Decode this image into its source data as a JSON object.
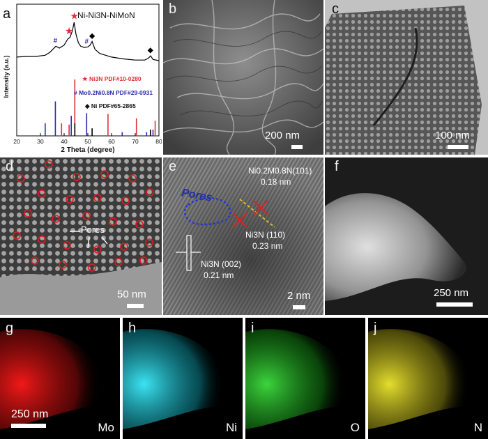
{
  "panels": {
    "a": {
      "label": "a",
      "title": "Ni-Ni3N-NiMoN",
      "ylabel": "Intensity (a.u.)",
      "xlabel": "2 Theta (degree)",
      "legend": [
        {
          "marker": "★",
          "text": "Ni3N PDF#10-0280",
          "color": "#e0303a"
        },
        {
          "marker": "#",
          "text": "Mo0.2Ni0.8N PDF#29-0931",
          "color": "#2a2ab0"
        },
        {
          "marker": "◆",
          "text": "Ni PDF#65-2865",
          "color": "#000000"
        }
      ]
    },
    "b": {
      "label": "b",
      "scale": "200 nm"
    },
    "c": {
      "label": "c",
      "scale": "100 nm"
    },
    "d": {
      "label": "d",
      "scale": "50 nm",
      "annotation": "Pores"
    },
    "e": {
      "label": "e",
      "scale": "2 nm",
      "pores": "Pores",
      "lattice": [
        {
          "text": "Ni0.2M0.8N(101)",
          "sub": "0.18 nm"
        },
        {
          "text": "Ni3N (110)",
          "sub": "0.23 nm"
        },
        {
          "text": "Ni3N (002)",
          "sub": "0.21 nm"
        }
      ]
    },
    "f": {
      "label": "f",
      "scale": "250 nm"
    },
    "g": {
      "label": "g",
      "element": "Mo",
      "scale": "250 nm",
      "color": "#ff1a1a"
    },
    "h": {
      "label": "h",
      "element": "Ni",
      "color": "#22d6e6"
    },
    "i": {
      "label": "i",
      "element": "O",
      "color": "#2ed12e"
    },
    "j": {
      "label": "j",
      "element": "N",
      "color": "#e6e020"
    }
  },
  "chart_data": {
    "type": "line",
    "title": "Ni-Ni3N-NiMoN",
    "xlabel": "2 Theta (degree)",
    "ylabel": "Intensity (a.u.)",
    "xlim": [
      20,
      80
    ],
    "xticks": [
      20,
      30,
      40,
      50,
      60,
      70,
      80
    ],
    "series": [
      {
        "name": "Ni-Ni3N-NiMoN",
        "x": [
          20,
          24,
          28,
          32,
          34,
          35.5,
          36.5,
          38,
          40,
          41.5,
          42.5,
          43.5,
          44.2,
          45,
          46,
          47,
          48.5,
          50,
          51,
          51.8,
          53,
          55,
          60,
          65,
          70,
          74,
          75.5,
          76.5,
          77.5,
          80
        ],
        "y": [
          0.42,
          0.43,
          0.43,
          0.45,
          0.5,
          0.56,
          0.6,
          0.57,
          0.62,
          0.72,
          0.75,
          0.86,
          1.0,
          0.8,
          0.66,
          0.6,
          0.58,
          0.59,
          0.62,
          0.68,
          0.55,
          0.48,
          0.42,
          0.39,
          0.37,
          0.37,
          0.4,
          0.44,
          0.38,
          0.36
        ]
      }
    ],
    "reference_lines": [
      {
        "name": "Ni3N PDF#10-0280",
        "color": "#e0303a",
        "positions": [
          38.9,
          42.1,
          44.5,
          58.5,
          70.5,
          78.4
        ],
        "heights": [
          0.2,
          0.18,
          0.9,
          0.35,
          0.28,
          0.24
        ]
      },
      {
        "name": "Mo0.2Ni0.8N PDF#29-0931",
        "color": "#2a2ab0",
        "positions": [
          32.0,
          36.3,
          43.0,
          49.5,
          64.5,
          74.8,
          77.5
        ],
        "heights": [
          0.2,
          0.55,
          0.32,
          0.36,
          0.06,
          0.06,
          0.1
        ]
      },
      {
        "name": "Ni PDF#65-2865",
        "color": "#000000",
        "positions": [
          44.5,
          51.8,
          76.4
        ],
        "heights": [
          0.2,
          0.12,
          0.1
        ]
      }
    ],
    "peak_markers": [
      {
        "x": 36.3,
        "symbol": "#",
        "color": "#2a2ab0"
      },
      {
        "x": 42.1,
        "symbol": "★",
        "color": "#e0303a"
      },
      {
        "x": 44.3,
        "symbol": "★",
        "color": "#e0303a"
      },
      {
        "x": 49.5,
        "symbol": "#",
        "color": "#2a2ab0"
      },
      {
        "x": 51.8,
        "symbol": "◆",
        "color": "#000000"
      },
      {
        "x": 76.4,
        "symbol": "◆",
        "color": "#000000"
      }
    ]
  }
}
